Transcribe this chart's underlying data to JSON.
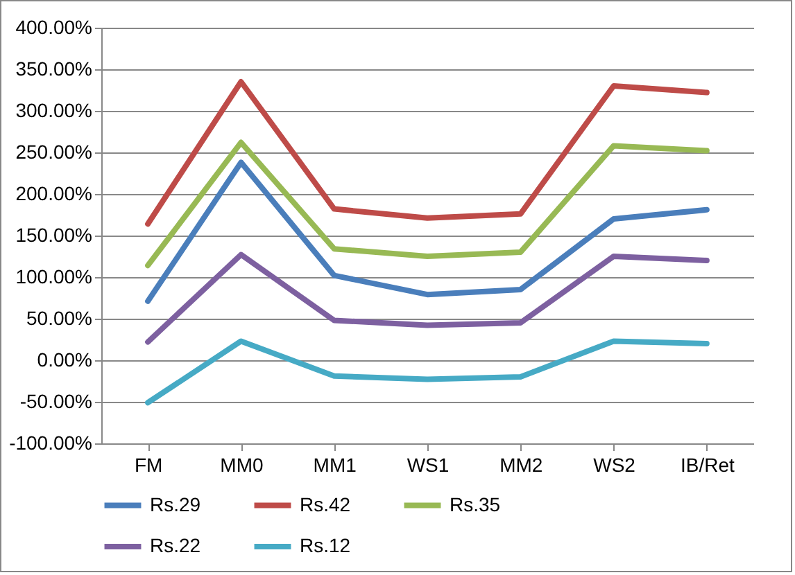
{
  "chart_data": {
    "type": "line",
    "categories": [
      "FM",
      "MM0",
      "MM1",
      "WS1",
      "MM2",
      "WS2",
      "IB/Ret"
    ],
    "series": [
      {
        "name": "Rs.29",
        "color": "#4a7ebb",
        "values": [
          71,
          238,
          102,
          79,
          85,
          170,
          181
        ]
      },
      {
        "name": "Rs.42",
        "color": "#be4b48",
        "values": [
          164,
          335,
          182,
          171,
          176,
          330,
          322
        ]
      },
      {
        "name": "Rs.35",
        "color": "#98b954",
        "values": [
          114,
          262,
          134,
          125,
          130,
          258,
          252
        ]
      },
      {
        "name": "Rs.22",
        "color": "#7d60a0",
        "values": [
          22,
          127,
          48,
          42,
          45,
          125,
          120
        ]
      },
      {
        "name": "Rs.12",
        "color": "#46aac5",
        "values": [
          -51,
          23,
          -19,
          -23,
          -20,
          23,
          20
        ]
      }
    ],
    "ylim": [
      -100,
      400
    ],
    "yticks": [
      {
        "value": -100,
        "label": "-100.00%"
      },
      {
        "value": -50,
        "label": "-50.00%"
      },
      {
        "value": 0,
        "label": "0.00%"
      },
      {
        "value": 50,
        "label": "50.00%"
      },
      {
        "value": 100,
        "label": "100.00%"
      },
      {
        "value": 150,
        "label": "150.00%"
      },
      {
        "value": 200,
        "label": "200.00%"
      },
      {
        "value": 250,
        "label": "250.00%"
      },
      {
        "value": 300,
        "label": "300.00%"
      },
      {
        "value": 350,
        "label": "350.00%"
      },
      {
        "value": 400,
        "label": "400.00%"
      }
    ],
    "grid": "y",
    "legend": "bottom",
    "marker": "none",
    "line_style": "solid"
  }
}
